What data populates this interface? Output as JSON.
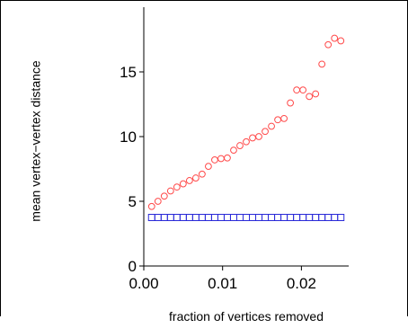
{
  "chart_data": {
    "type": "scatter",
    "title": "",
    "xlabel": "fraction of vertices removed",
    "ylabel": "mean vertex−vertex distance",
    "xlim": [
      0.0,
      0.026
    ],
    "ylim": [
      0,
      19
    ],
    "xticks": [
      0.0,
      0.01,
      0.02
    ],
    "xtick_labels": [
      "0.00",
      "0.01",
      "0.02"
    ],
    "yticks": [
      0,
      5,
      10,
      15
    ],
    "ytick_labels": [
      "0",
      "5",
      "10",
      "15"
    ],
    "grid": false,
    "legend": "none",
    "series": [
      {
        "marker": "circle",
        "color": "#ff4a4a",
        "points": [
          [
            0.001,
            4.6
          ],
          [
            0.0018,
            5.0
          ],
          [
            0.0026,
            5.4
          ],
          [
            0.0034,
            5.8
          ],
          [
            0.0042,
            6.1
          ],
          [
            0.005,
            6.35
          ],
          [
            0.0058,
            6.6
          ],
          [
            0.0066,
            6.8
          ],
          [
            0.0074,
            7.1
          ],
          [
            0.0082,
            7.7
          ],
          [
            0.009,
            8.2
          ],
          [
            0.0098,
            8.3
          ],
          [
            0.0106,
            8.35
          ],
          [
            0.0114,
            8.95
          ],
          [
            0.0122,
            9.3
          ],
          [
            0.013,
            9.6
          ],
          [
            0.0138,
            9.9
          ],
          [
            0.0146,
            10.0
          ],
          [
            0.0154,
            10.4
          ],
          [
            0.0162,
            10.8
          ],
          [
            0.017,
            11.3
          ],
          [
            0.0178,
            11.4
          ],
          [
            0.0186,
            12.6
          ],
          [
            0.0194,
            13.6
          ],
          [
            0.0202,
            13.6
          ],
          [
            0.021,
            13.1
          ],
          [
            0.0218,
            13.3
          ],
          [
            0.0226,
            15.6
          ],
          [
            0.0234,
            17.1
          ],
          [
            0.0242,
            17.6
          ],
          [
            0.025,
            17.4
          ]
        ]
      },
      {
        "marker": "square",
        "color": "#2a2ad8",
        "points": [
          [
            0.001,
            3.75
          ],
          [
            0.0018,
            3.75
          ],
          [
            0.0026,
            3.75
          ],
          [
            0.0034,
            3.75
          ],
          [
            0.0042,
            3.75
          ],
          [
            0.005,
            3.75
          ],
          [
            0.0058,
            3.75
          ],
          [
            0.0066,
            3.75
          ],
          [
            0.0074,
            3.75
          ],
          [
            0.0082,
            3.75
          ],
          [
            0.009,
            3.75
          ],
          [
            0.0098,
            3.75
          ],
          [
            0.0106,
            3.75
          ],
          [
            0.0114,
            3.75
          ],
          [
            0.0122,
            3.75
          ],
          [
            0.013,
            3.75
          ],
          [
            0.0138,
            3.75
          ],
          [
            0.0146,
            3.75
          ],
          [
            0.0154,
            3.75
          ],
          [
            0.0162,
            3.75
          ],
          [
            0.017,
            3.75
          ],
          [
            0.0178,
            3.75
          ],
          [
            0.0186,
            3.75
          ],
          [
            0.0194,
            3.75
          ],
          [
            0.0202,
            3.75
          ],
          [
            0.021,
            3.75
          ],
          [
            0.0218,
            3.75
          ],
          [
            0.0226,
            3.75
          ],
          [
            0.0234,
            3.75
          ],
          [
            0.0242,
            3.75
          ],
          [
            0.025,
            3.75
          ]
        ]
      }
    ]
  }
}
